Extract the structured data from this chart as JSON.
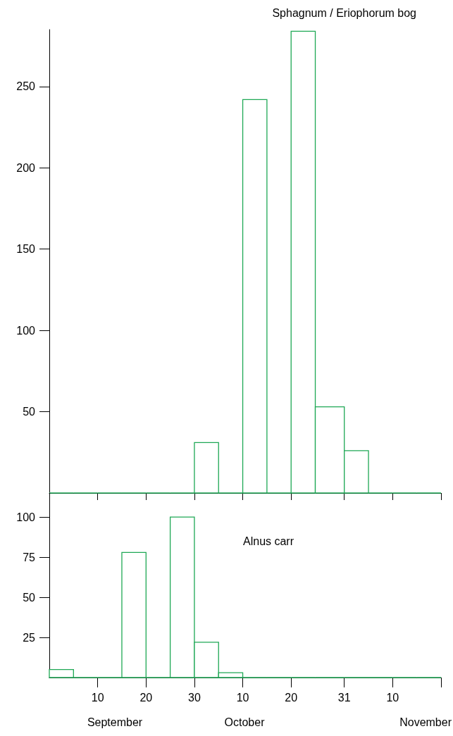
{
  "chart_data": [
    {
      "type": "histogram",
      "title": "Sphagnum / Eriophorum bog",
      "color": "#1fa855",
      "bins": [
        "--08-31",
        "--09-05",
        "--09-10",
        "--09-15",
        "--09-20",
        "--09-25",
        "--09-30",
        "--10-05",
        "--10-10",
        "--10-15",
        "--10-20",
        "--10-25",
        "--10-31",
        "--11-05",
        "--11-10",
        "--11-15",
        "--11-20"
      ],
      "values": [
        0,
        0,
        0,
        0,
        0,
        0,
        31,
        0,
        242,
        0,
        284,
        53,
        26,
        0,
        0,
        0
      ],
      "xlim": [
        "--08-31",
        "--11-20"
      ],
      "xticks": [
        {
          "value": "--09-10",
          "label": "10"
        },
        {
          "value": "--09-20",
          "label": "20"
        },
        {
          "value": "--09-30",
          "label": "30"
        },
        {
          "value": "--10-10",
          "label": "10"
        },
        {
          "value": "--10-20",
          "label": "20"
        },
        {
          "value": "--10-31",
          "label": "31"
        },
        {
          "value": "--11-10",
          "label": "10"
        },
        {
          "value": "--11-20",
          "label": null
        }
      ],
      "ylim": [
        0,
        285
      ],
      "yticks": [
        50,
        100,
        150,
        200,
        250
      ],
      "tick_labels": "y"
    },
    {
      "type": "histogram",
      "title": "Alnus carr",
      "color": "#1fa855",
      "bins": [
        "--08-31",
        "--09-05",
        "--09-10",
        "--09-15",
        "--09-20",
        "--09-25",
        "--09-30",
        "--10-05",
        "--10-10",
        "--10-15",
        "--10-20",
        "--10-25",
        "--10-31",
        "--11-05",
        "--11-10",
        "--11-15",
        "--11-20"
      ],
      "values": [
        5,
        0,
        0,
        78,
        0,
        100,
        22,
        3,
        0,
        0,
        0,
        0,
        0,
        0,
        0,
        0
      ],
      "xlim": [
        "--08-31",
        "--11-20"
      ],
      "xticks": [
        {
          "value": "--09-10",
          "label": "10"
        },
        {
          "value": "--09-20",
          "label": "20"
        },
        {
          "value": "--09-30",
          "label": "30"
        },
        {
          "value": "--10-10",
          "label": "10"
        },
        {
          "value": "--10-20",
          "label": "20"
        },
        {
          "value": "--10-31",
          "label": "31"
        },
        {
          "value": "--11-10",
          "label": "10"
        },
        {
          "value": "--11-20",
          "label": null
        }
      ],
      "ylim": [
        0,
        115
      ],
      "yticks": [
        25,
        50,
        75,
        100
      ],
      "annotations": [
        "September",
        "October",
        "November"
      ]
    }
  ]
}
